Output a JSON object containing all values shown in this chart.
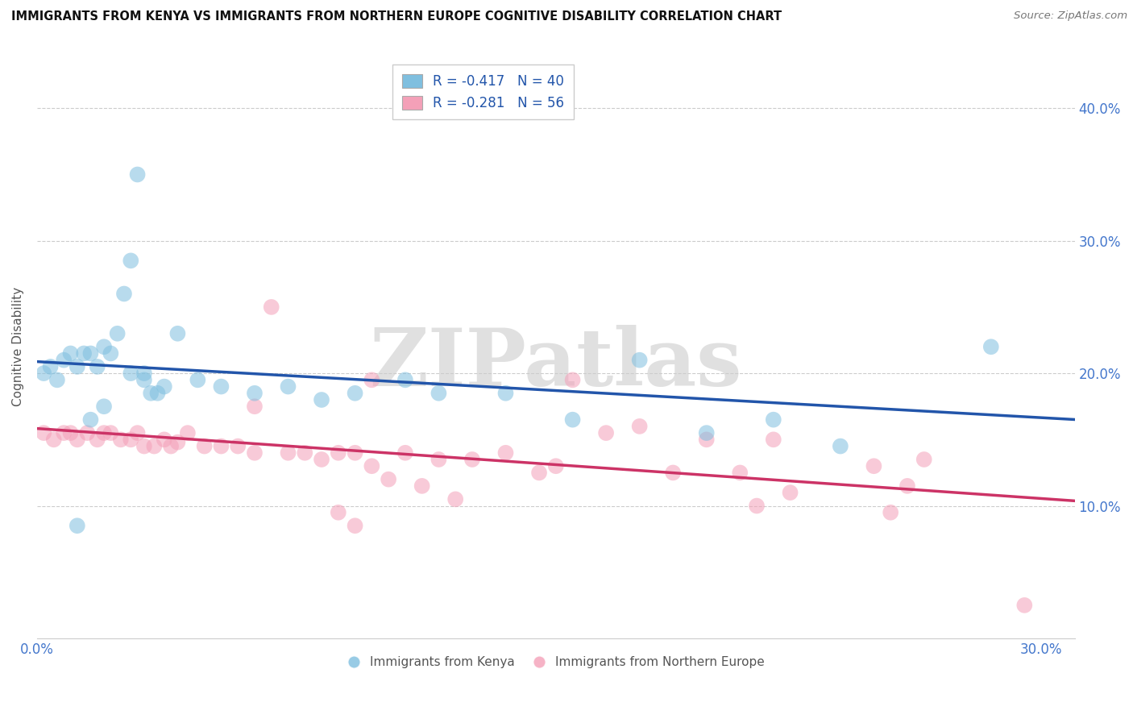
{
  "title": "IMMIGRANTS FROM KENYA VS IMMIGRANTS FROM NORTHERN EUROPE COGNITIVE DISABILITY CORRELATION CHART",
  "source": "Source: ZipAtlas.com",
  "ylabel": "Cognitive Disability",
  "xlim": [
    0.0,
    0.31
  ],
  "ylim": [
    0.0,
    0.44
  ],
  "ytick_positions": [
    0.1,
    0.2,
    0.3,
    0.4
  ],
  "ytick_labels": [
    "10.0%",
    "20.0%",
    "30.0%",
    "40.0%"
  ],
  "xtick_positions": [
    0.0,
    0.3
  ],
  "xtick_labels": [
    "0.0%",
    "30.0%"
  ],
  "grid_color": "#cccccc",
  "background_color": "#ffffff",
  "watermark_text": "ZIPatlas",
  "legend_title_blue": "R = -0.417   N = 40",
  "legend_title_pink": "R = -0.281   N = 56",
  "legend_label_blue": "Immigrants from Kenya",
  "legend_label_pink": "Immigrants from Northern Europe",
  "blue_color": "#7fbfdf",
  "pink_color": "#f4a0b8",
  "blue_line_color": "#2255aa",
  "pink_line_color": "#cc3366",
  "tick_label_color": "#4477cc",
  "blue_x": [
    0.002,
    0.004,
    0.006,
    0.008,
    0.01,
    0.012,
    0.014,
    0.016,
    0.018,
    0.02,
    0.022,
    0.024,
    0.026,
    0.028,
    0.03,
    0.032,
    0.034,
    0.038,
    0.042,
    0.048,
    0.055,
    0.065,
    0.075,
    0.085,
    0.095,
    0.11,
    0.12,
    0.14,
    0.16,
    0.18,
    0.2,
    0.22,
    0.24,
    0.012,
    0.016,
    0.02,
    0.028,
    0.032,
    0.036,
    0.285
  ],
  "blue_y": [
    0.2,
    0.205,
    0.195,
    0.21,
    0.215,
    0.205,
    0.215,
    0.215,
    0.205,
    0.22,
    0.215,
    0.23,
    0.26,
    0.285,
    0.35,
    0.195,
    0.185,
    0.19,
    0.23,
    0.195,
    0.19,
    0.185,
    0.19,
    0.18,
    0.185,
    0.195,
    0.185,
    0.185,
    0.165,
    0.21,
    0.155,
    0.165,
    0.145,
    0.085,
    0.165,
    0.175,
    0.2,
    0.2,
    0.185,
    0.22
  ],
  "pink_x": [
    0.002,
    0.005,
    0.008,
    0.01,
    0.012,
    0.015,
    0.018,
    0.02,
    0.022,
    0.025,
    0.028,
    0.03,
    0.032,
    0.035,
    0.038,
    0.04,
    0.042,
    0.045,
    0.05,
    0.055,
    0.06,
    0.065,
    0.07,
    0.075,
    0.08,
    0.085,
    0.09,
    0.095,
    0.1,
    0.11,
    0.12,
    0.13,
    0.14,
    0.15,
    0.155,
    0.16,
    0.17,
    0.18,
    0.19,
    0.2,
    0.21,
    0.215,
    0.22,
    0.225,
    0.25,
    0.255,
    0.26,
    0.265,
    0.065,
    0.09,
    0.095,
    0.1,
    0.105,
    0.115,
    0.125,
    0.295
  ],
  "pink_y": [
    0.155,
    0.15,
    0.155,
    0.155,
    0.15,
    0.155,
    0.15,
    0.155,
    0.155,
    0.15,
    0.15,
    0.155,
    0.145,
    0.145,
    0.15,
    0.145,
    0.148,
    0.155,
    0.145,
    0.145,
    0.145,
    0.14,
    0.25,
    0.14,
    0.14,
    0.135,
    0.14,
    0.14,
    0.195,
    0.14,
    0.135,
    0.135,
    0.14,
    0.125,
    0.13,
    0.195,
    0.155,
    0.16,
    0.125,
    0.15,
    0.125,
    0.1,
    0.15,
    0.11,
    0.13,
    0.095,
    0.115,
    0.135,
    0.175,
    0.095,
    0.085,
    0.13,
    0.12,
    0.115,
    0.105,
    0.025
  ]
}
